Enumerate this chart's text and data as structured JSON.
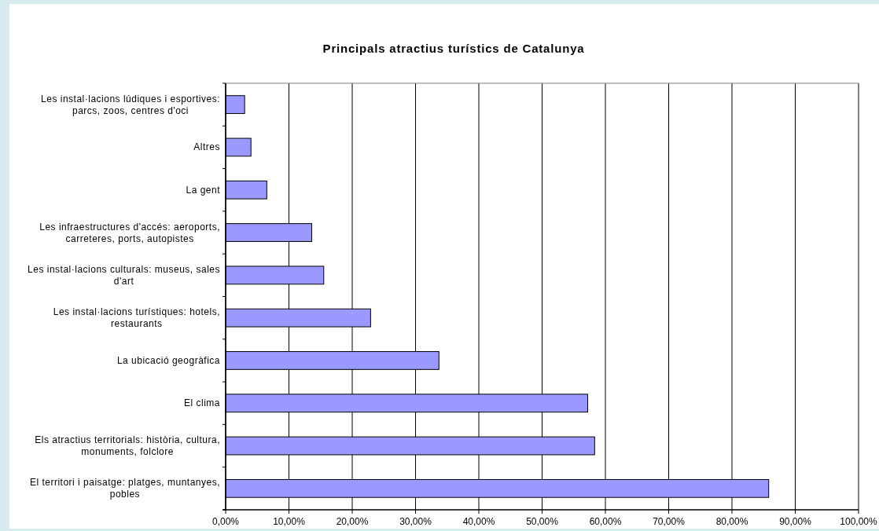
{
  "chart_data": {
    "type": "bar",
    "orientation": "horizontal",
    "title": "Principals atractius turístics de Catalunya",
    "categories": [
      "Les instal·lacions lúdiques i esportives: parcs, zoos, centres d'oci",
      "Altres",
      "La gent",
      "Les infraestructures d'accés: aeroports, carreteres, ports, autopistes",
      "Les instal·lacions culturals: museus, sales d'art",
      "Les instal·lacions turístiques: hotels, restaurants",
      "La ubicació geogràfica",
      "El clima",
      "Els atractius territorials: història, cultura, monuments, folclore",
      "El territori i paisatge: platges, muntanyes, pobles"
    ],
    "values": [
      3.0,
      4.0,
      6.5,
      13.6,
      15.5,
      22.9,
      33.7,
      57.2,
      58.3,
      85.8
    ],
    "color": "#9999ff",
    "xlim": [
      0,
      100
    ],
    "xticks": [
      {
        "value": 0,
        "label": "0,00%"
      },
      {
        "value": 10,
        "label": "10,00%"
      },
      {
        "value": 20,
        "label": "20,00%"
      },
      {
        "value": 30,
        "label": "30,00%"
      },
      {
        "value": 40,
        "label": "40,00%"
      },
      {
        "value": 50,
        "label": "50,00%"
      },
      {
        "value": 60,
        "label": "60,00%"
      },
      {
        "value": 70,
        "label": "70,00%"
      },
      {
        "value": 80,
        "label": "80,00%"
      },
      {
        "value": 90,
        "label": "90,00%"
      },
      {
        "value": 100,
        "label": "100,00%"
      }
    ],
    "grid": "x"
  }
}
